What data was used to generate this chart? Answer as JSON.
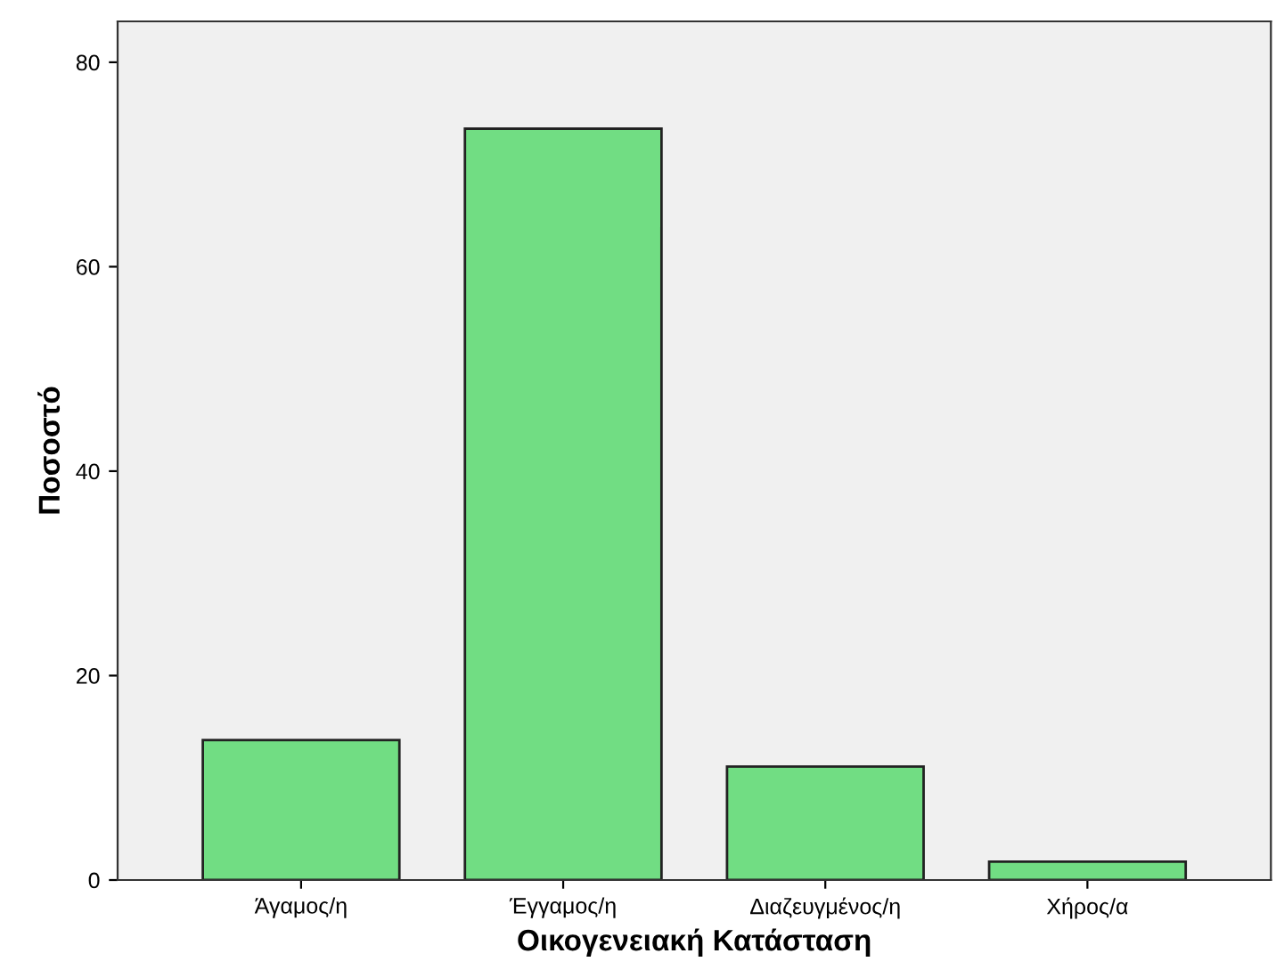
{
  "chart_data": {
    "type": "bar",
    "xlabel": "Οικογενειακή Κατάσταση",
    "ylabel": "Ποσοστό",
    "categories": [
      "Άγαμος/η",
      "Έγγαμος/η",
      "Διαζευγμένος/η",
      "Χήρος/α"
    ],
    "values": [
      13.7,
      73.5,
      11.1,
      1.8
    ],
    "color": "#71dd83",
    "ylim": [
      0,
      84
    ],
    "yticks": [
      0,
      20,
      40,
      60,
      80
    ],
    "grid": false
  }
}
